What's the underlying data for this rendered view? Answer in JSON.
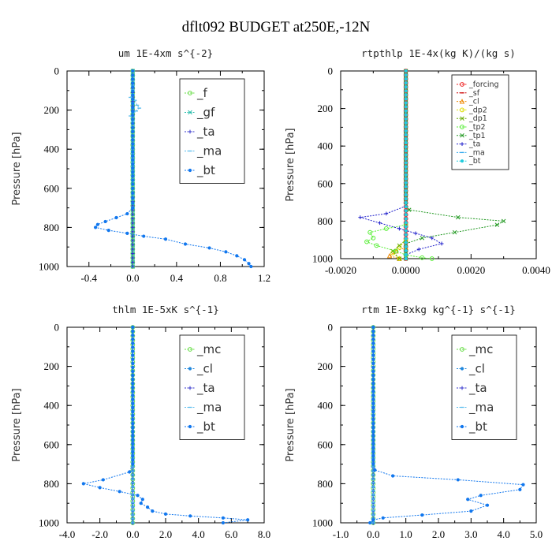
{
  "figure": {
    "title": "dflt092  BUDGET at250E,-12N"
  },
  "chart_data": [
    {
      "type": "line",
      "title": "um   1E-4xm s^{-2}",
      "xlabel": "",
      "ylabel": "Pressure [hPa]",
      "xlim": [
        -0.6,
        1.2
      ],
      "ylim": [
        0,
        1000
      ],
      "y_inverted": true,
      "xticks": [
        "-0.4",
        "0.0",
        "0.4",
        "0.8",
        "1.2"
      ],
      "xtick_values": [
        -0.4,
        0.0,
        0.4,
        0.8,
        1.2
      ],
      "yticks": [
        "0",
        "200",
        "400",
        "600",
        "800",
        "1000"
      ],
      "legend_position": "top-right",
      "legend_small": false,
      "series": [
        {
          "name": "_f",
          "color": "#66dd44",
          "marker": "o",
          "points": [
            [
              0,
              0
            ],
            [
              0,
              200
            ],
            [
              0,
              400
            ],
            [
              0,
              600
            ],
            [
              0,
              800
            ],
            [
              0,
              1000
            ]
          ]
        },
        {
          "name": "_gf",
          "color": "#22bbaa",
          "marker": "x",
          "points": [
            [
              0,
              0
            ],
            [
              0,
              200
            ],
            [
              0,
              400
            ],
            [
              0,
              600
            ],
            [
              0,
              800
            ],
            [
              0,
              1000
            ]
          ]
        },
        {
          "name": "_ta",
          "color": "#3333cc",
          "marker": "+",
          "points": [
            [
              0,
              0
            ],
            [
              0,
              200
            ],
            [
              0,
              400
            ],
            [
              0,
              600
            ],
            [
              0,
              800
            ],
            [
              0,
              1000
            ]
          ]
        },
        {
          "name": "_ma",
          "color": "#55bbee",
          "marker": "-",
          "points": [
            [
              0,
              0
            ],
            [
              0,
              120
            ],
            [
              -0.02,
              135
            ],
            [
              0.02,
              150
            ],
            [
              0.04,
              175
            ],
            [
              0.06,
              190
            ],
            [
              0.03,
              205
            ],
            [
              -0.02,
              230
            ],
            [
              0,
              260
            ],
            [
              0,
              400
            ],
            [
              0,
              600
            ],
            [
              0,
              700
            ]
          ]
        },
        {
          "name": "_bt",
          "color": "#1177ee",
          "marker": "*",
          "points": [
            [
              0,
              0
            ],
            [
              0,
              600
            ],
            [
              0,
              700
            ],
            [
              -0.05,
              730
            ],
            [
              -0.15,
              750
            ],
            [
              -0.25,
              770
            ],
            [
              -0.32,
              785
            ],
            [
              -0.34,
              800
            ],
            [
              -0.22,
              815
            ],
            [
              -0.05,
              830
            ],
            [
              0.1,
              845
            ],
            [
              0.3,
              860
            ],
            [
              0.48,
              885
            ],
            [
              0.7,
              905
            ],
            [
              0.85,
              925
            ],
            [
              0.95,
              945
            ],
            [
              1.02,
              965
            ],
            [
              1.06,
              985
            ],
            [
              1.08,
              1000
            ]
          ]
        }
      ]
    },
    {
      "type": "line",
      "title": "rtpthlp   1E-4x(kg K)/(kg s)",
      "xlabel": "",
      "ylabel": "Pressure [hPa]",
      "xlim": [
        -0.002,
        0.004
      ],
      "ylim": [
        0,
        1000
      ],
      "y_inverted": true,
      "xticks": [
        "-0.0020",
        "0.0000",
        "0.0020",
        "0.0040"
      ],
      "xtick_values": [
        -0.002,
        0.0,
        0.002,
        0.004
      ],
      "yticks": [
        "0",
        "200",
        "400",
        "600",
        "800",
        "1000"
      ],
      "legend_position": "top-right",
      "legend_small": true,
      "series": [
        {
          "name": "_forcing",
          "color": "#ee2222",
          "marker": "o",
          "points": [
            [
              0,
              0
            ],
            [
              0,
              1000
            ]
          ]
        },
        {
          "name": "_sf",
          "color": "#cc0000",
          "marker": "-",
          "points": [
            [
              0,
              0
            ],
            [
              0,
              1000
            ]
          ]
        },
        {
          "name": "_cl",
          "color": "#ee8800",
          "marker": "^",
          "points": [
            [
              0,
              940
            ],
            [
              -0.0003,
              960
            ],
            [
              -0.0005,
              985
            ],
            [
              -0.0002,
              1000
            ]
          ]
        },
        {
          "name": "_dp2",
          "color": "#dddd00",
          "marker": "o",
          "points": [
            [
              0,
              900
            ],
            [
              -0.0002,
              940
            ],
            [
              -0.0004,
              970
            ],
            [
              -0.0002,
              1000
            ]
          ]
        },
        {
          "name": "_dp1",
          "color": "#66aa00",
          "marker": "x",
          "points": [
            [
              0,
              900
            ],
            [
              -0.0004,
              960
            ],
            [
              -0.0002,
              1000
            ]
          ]
        },
        {
          "name": "_tp2",
          "color": "#55ee33",
          "marker": "o",
          "points": [
            [
              0,
              820
            ],
            [
              -0.0006,
              840
            ],
            [
              -0.0011,
              860
            ],
            [
              -0.001,
              890
            ],
            [
              -0.0012,
              910
            ],
            [
              -0.0009,
              930
            ],
            [
              -0.0003,
              960
            ],
            [
              0,
              980
            ],
            [
              0.0005,
              995
            ],
            [
              0.0008,
              1000
            ]
          ]
        },
        {
          "name": "_tp1",
          "color": "#229922",
          "marker": "x",
          "points": [
            [
              0,
              0
            ],
            [
              0,
              700
            ],
            [
              0.0001,
              740
            ],
            [
              0.0016,
              780
            ],
            [
              0.003,
              800
            ],
            [
              0.0028,
              820
            ],
            [
              0.0015,
              860
            ],
            [
              0.0005,
              890
            ],
            [
              0,
              920
            ],
            [
              0,
              1000
            ]
          ]
        },
        {
          "name": "_ta",
          "color": "#2222cc",
          "marker": "+",
          "points": [
            [
              0,
              720
            ],
            [
              -0.0006,
              760
            ],
            [
              -0.0014,
              780
            ],
            [
              -0.0008,
              810
            ],
            [
              -0.0002,
              840
            ],
            [
              0.0008,
              890
            ],
            [
              0.0011,
              920
            ],
            [
              0.0004,
              950
            ],
            [
              0,
              980
            ]
          ]
        },
        {
          "name": "_ma",
          "color": "#33aaee",
          "marker": "-",
          "points": [
            [
              0,
              0
            ],
            [
              0,
              1000
            ]
          ]
        },
        {
          "name": "_bt",
          "color": "#22ccdd",
          "marker": "*",
          "points": [
            [
              0,
              0
            ],
            [
              0,
              1000
            ]
          ]
        }
      ]
    },
    {
      "type": "line",
      "title": "thlm   1E-5xK s^{-1}",
      "xlabel": "",
      "ylabel": "Pressure [hPa]",
      "xlim": [
        -4.0,
        8.0
      ],
      "ylim": [
        0,
        1000
      ],
      "y_inverted": true,
      "xticks": [
        "-4.0",
        "-2.0",
        "0.0",
        "2.0",
        "4.0",
        "6.0",
        "8.0"
      ],
      "xtick_values": [
        -4,
        -2,
        0,
        2,
        4,
        6,
        8
      ],
      "yticks": [
        "0",
        "200",
        "400",
        "600",
        "800",
        "1000"
      ],
      "legend_position": "top-right",
      "legend_small": false,
      "series": [
        {
          "name": "_mc",
          "color": "#66dd44",
          "marker": "o",
          "points": [
            [
              0,
              0
            ],
            [
              0,
              200
            ],
            [
              0,
              400
            ],
            [
              0,
              600
            ],
            [
              0,
              800
            ],
            [
              0,
              1000
            ]
          ]
        },
        {
          "name": "_cl",
          "color": "#2288dd",
          "marker": "*",
          "points": [
            [
              0,
              0
            ],
            [
              0,
              1000
            ]
          ]
        },
        {
          "name": "_ta",
          "color": "#3333cc",
          "marker": "+",
          "points": [
            [
              0,
              0
            ],
            [
              0,
              1000
            ]
          ]
        },
        {
          "name": "_ma",
          "color": "#55bbee",
          "marker": "-",
          "points": [
            [
              0,
              0
            ],
            [
              0,
              1000
            ]
          ]
        },
        {
          "name": "_bt",
          "color": "#1177ee",
          "marker": "*",
          "points": [
            [
              0,
              0
            ],
            [
              0,
              700
            ],
            [
              -0.2,
              740
            ],
            [
              -1.8,
              780
            ],
            [
              -3.0,
              800
            ],
            [
              -2.0,
              820
            ],
            [
              -0.8,
              840
            ],
            [
              0.3,
              860
            ],
            [
              0.6,
              880
            ],
            [
              0.5,
              900
            ],
            [
              0.9,
              920
            ],
            [
              1.2,
              940
            ],
            [
              2.0,
              955
            ],
            [
              3.5,
              965
            ],
            [
              5.5,
              975
            ],
            [
              7.0,
              985
            ],
            [
              5.5,
              1000
            ]
          ]
        }
      ]
    },
    {
      "type": "line",
      "title": "rtm   1E-8xkg kg^{-1} s^{-1}",
      "xlabel": "",
      "ylabel": "Pressure [hPa]",
      "xlim": [
        -1.0,
        5.0
      ],
      "ylim": [
        0,
        1000
      ],
      "y_inverted": true,
      "xticks": [
        "-1.0",
        "0.0",
        "1.0",
        "2.0",
        "3.0",
        "4.0",
        "5.0"
      ],
      "xtick_values": [
        -1,
        0,
        1,
        2,
        3,
        4,
        5
      ],
      "yticks": [
        "0",
        "200",
        "400",
        "600",
        "800",
        "1000"
      ],
      "legend_position": "top-right",
      "legend_small": false,
      "series": [
        {
          "name": "_mc",
          "color": "#66dd44",
          "marker": "o",
          "points": [
            [
              0,
              0
            ],
            [
              0,
              200
            ],
            [
              0,
              400
            ],
            [
              0,
              600
            ],
            [
              0,
              800
            ],
            [
              0,
              1000
            ]
          ]
        },
        {
          "name": "_cl",
          "color": "#2288dd",
          "marker": "*",
          "points": [
            [
              0,
              0
            ],
            [
              0,
              1000
            ]
          ]
        },
        {
          "name": "_ta",
          "color": "#3333cc",
          "marker": "+",
          "points": [
            [
              0,
              0
            ],
            [
              0,
              1000
            ]
          ]
        },
        {
          "name": "_ma",
          "color": "#55bbee",
          "marker": "-",
          "points": [
            [
              0,
              0
            ],
            [
              0,
              1000
            ]
          ]
        },
        {
          "name": "_bt",
          "color": "#1177ee",
          "marker": "*",
          "points": [
            [
              0,
              0
            ],
            [
              0,
              700
            ],
            [
              0.05,
              730
            ],
            [
              0.6,
              760
            ],
            [
              2.6,
              780
            ],
            [
              4.6,
              805
            ],
            [
              4.5,
              830
            ],
            [
              3.3,
              860
            ],
            [
              2.9,
              880
            ],
            [
              3.5,
              910
            ],
            [
              3.0,
              940
            ],
            [
              1.5,
              960
            ],
            [
              0.3,
              975
            ],
            [
              0,
              985
            ],
            [
              -0.1,
              1000
            ]
          ]
        }
      ]
    }
  ]
}
